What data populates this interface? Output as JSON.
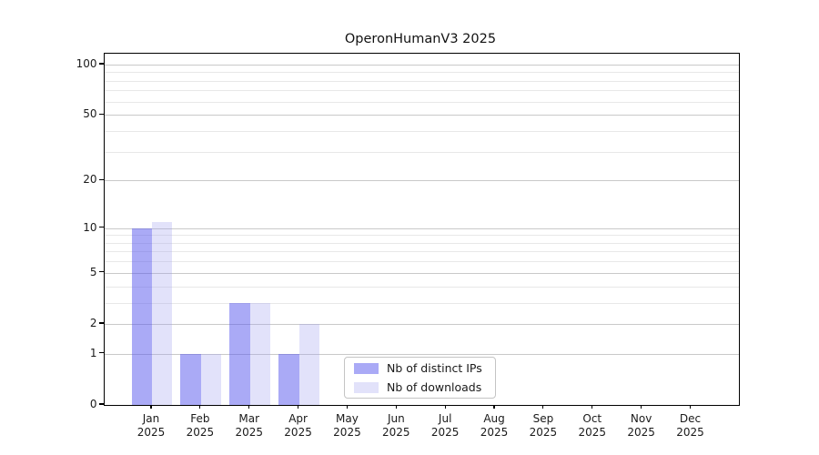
{
  "chart_data": {
    "type": "bar",
    "title": "OperonHumanV3 2025",
    "categories": [
      "Jan",
      "Feb",
      "Mar",
      "Apr",
      "May",
      "Jun",
      "Jul",
      "Aug",
      "Sep",
      "Oct",
      "Nov",
      "Dec"
    ],
    "category_year": "2025",
    "series": [
      {
        "name": "Nb of distinct IPs",
        "color": "#5555ee80",
        "values": [
          10,
          1,
          3,
          1,
          0,
          0,
          0,
          0,
          0,
          0,
          0,
          0
        ]
      },
      {
        "name": "Nb of downloads",
        "color": "#a0a0f04d",
        "values": [
          11,
          1,
          3,
          2,
          0,
          0,
          0,
          0,
          0,
          0,
          0,
          0
        ]
      }
    ],
    "xlabel": "",
    "ylabel": "",
    "yscale": "log10(1+y)",
    "ylim": [
      0,
      116
    ],
    "yticks_major": [
      0,
      1,
      2,
      5,
      10,
      20,
      50,
      100
    ],
    "yticks_minor": [
      3,
      4,
      6,
      7,
      8,
      9,
      30,
      40,
      60,
      70,
      80,
      90
    ],
    "grid": "horizontal",
    "legend_position": "inside lower center",
    "colors": {
      "grid_major": "#c9c9c9",
      "grid_minor": "#e8e8e8",
      "spine": "#000000",
      "text": "#1a1a1a"
    }
  }
}
